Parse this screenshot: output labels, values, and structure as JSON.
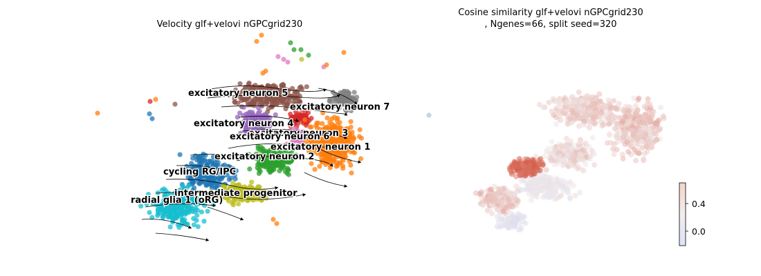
{
  "chart_data": [
    {
      "type": "scatter",
      "subtype": "embedding-velocity-stream",
      "title": "Velocity glf+velovi nGPCgrid230",
      "axes_visible": false,
      "legend": "on data",
      "clusters": [
        {
          "name": "excitatory neuron 5",
          "color": "#8c564b"
        },
        {
          "name": "excitatory neuron 7",
          "color": "#7f7f7f"
        },
        {
          "name": "excitatory neuron 4",
          "color": "#9467bd"
        },
        {
          "name": "excitatory neuron 3",
          "color": "#d62728"
        },
        {
          "name": "excitatory neuron 6",
          "color": "#e377c2"
        },
        {
          "name": "excitatory neuron 1",
          "color": "#ff7f0e"
        },
        {
          "name": "excitatory neuron 2",
          "color": "#2ca02c"
        },
        {
          "name": "cycling RG/IPC",
          "color": "#1f77b4"
        },
        {
          "name": "intermediate progenitor",
          "color": "#bcbd22"
        },
        {
          "name": "radial glia 1 (oRG)",
          "color": "#17becf"
        }
      ]
    },
    {
      "type": "scatter",
      "subtype": "embedding-colored",
      "title": "Cosine similarity glf+velovi nGPCgrid230",
      "subtitle": ", Ngenes=66, split seed=320",
      "axes_visible": false,
      "colormap": "coolwarm",
      "colorbar": {
        "ticks": [
          0.0,
          0.4
        ],
        "tick_labels": [
          "0.0",
          "0.4"
        ],
        "range": [
          -0.2,
          0.6
        ]
      }
    }
  ]
}
